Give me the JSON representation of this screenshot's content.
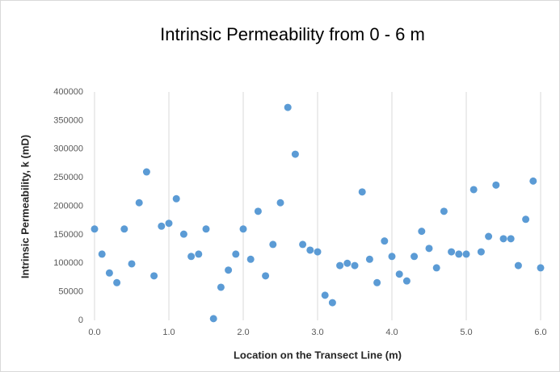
{
  "chart_data": {
    "type": "scatter",
    "title": "Intrinsic Permeability from 0 - 6 m",
    "xlabel": "Location on the Transect Line (m)",
    "ylabel": "Intrinsic Permeability, k (mD)",
    "color": "#5b9bd5",
    "grid": "x",
    "x": [
      0.0,
      0.1,
      0.2,
      0.3,
      0.4,
      0.5,
      0.6,
      0.7,
      0.8,
      0.9,
      1.0,
      1.1,
      1.2,
      1.3,
      1.4,
      1.5,
      1.6,
      1.7,
      1.8,
      1.9,
      2.0,
      2.1,
      2.2,
      2.3,
      2.4,
      2.5,
      2.6,
      2.7,
      2.8,
      2.9,
      3.0,
      3.1,
      3.2,
      3.3,
      3.4,
      3.5,
      3.6,
      3.7,
      3.8,
      3.9,
      4.0,
      4.1,
      4.2,
      4.3,
      4.4,
      4.5,
      4.6,
      4.7,
      4.8,
      4.9,
      5.0,
      5.1,
      5.2,
      5.3,
      5.4,
      5.5,
      5.6,
      5.7,
      5.8,
      5.9,
      6.0
    ],
    "values": [
      160000,
      116000,
      83000,
      66000,
      160000,
      99000,
      206000,
      260000,
      78000,
      165000,
      170000,
      213000,
      151000,
      112000,
      116000,
      160000,
      3000,
      58000,
      88000,
      116000,
      160000,
      107000,
      191000,
      78000,
      133000,
      206000,
      373000,
      291000,
      133000,
      123000,
      120000,
      44000,
      31000,
      96000,
      100000,
      96000,
      225000,
      107000,
      66000,
      139000,
      112000,
      81000,
      69000,
      112000,
      156000,
      126000,
      92000,
      191000,
      120000,
      116000,
      116000,
      229000,
      120000,
      147000,
      237000,
      143000,
      143000,
      96000,
      177000,
      244000,
      92000
    ],
    "xlim": [
      0,
      6
    ],
    "xticks": [
      {
        "value": 0,
        "label": "0.0"
      },
      {
        "value": 1,
        "label": "1.0"
      },
      {
        "value": 2,
        "label": "2.0"
      },
      {
        "value": 3,
        "label": "3.0"
      },
      {
        "value": 4,
        "label": "4.0"
      },
      {
        "value": 5,
        "label": "5.0"
      },
      {
        "value": 6,
        "label": "6.0"
      }
    ],
    "ylim": [
      0,
      400000
    ],
    "yticks": [
      0,
      50000,
      100000,
      150000,
      200000,
      250000,
      300000,
      350000,
      400000
    ]
  }
}
